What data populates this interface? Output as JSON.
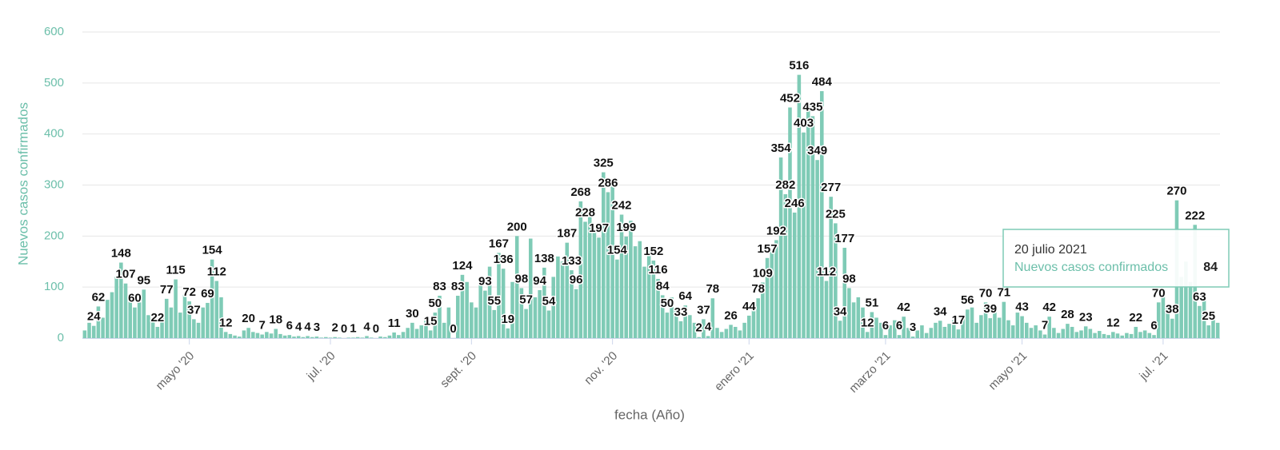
{
  "chart_data": {
    "type": "bar",
    "y_label": "Nuevos casos confirmados",
    "x_label": "fecha (Año)",
    "ylim": [
      0,
      600
    ],
    "yticks": [
      0,
      100,
      200,
      300,
      400,
      500,
      600
    ],
    "grid": true,
    "tooltip_title": "20 julio 2021",
    "categories": [
      null,
      null,
      null,
      null,
      null,
      null,
      null,
      null,
      null,
      null,
      null,
      null,
      null,
      null,
      null,
      null,
      null,
      null,
      null,
      null,
      null,
      null,
      null,
      "mayo '20",
      null,
      null,
      null,
      null,
      null,
      null,
      null,
      null,
      null,
      null,
      null,
      null,
      null,
      null,
      null,
      null,
      null,
      null,
      null,
      null,
      null,
      null,
      null,
      null,
      null,
      null,
      null,
      null,
      null,
      null,
      "jul. '20",
      null,
      null,
      null,
      null,
      null,
      null,
      null,
      null,
      null,
      null,
      null,
      null,
      null,
      null,
      null,
      null,
      null,
      null,
      null,
      null,
      null,
      null,
      null,
      null,
      null,
      null,
      null,
      null,
      null,
      null,
      "sept. '20",
      null,
      null,
      null,
      null,
      null,
      null,
      null,
      null,
      null,
      null,
      null,
      null,
      null,
      null,
      null,
      null,
      null,
      null,
      null,
      null,
      null,
      null,
      null,
      null,
      null,
      null,
      null,
      null,
      null,
      null,
      "nov. '20",
      null,
      null,
      null,
      null,
      null,
      null,
      null,
      null,
      null,
      null,
      null,
      null,
      null,
      null,
      null,
      null,
      null,
      null,
      null,
      null,
      null,
      null,
      null,
      null,
      null,
      null,
      null,
      null,
      null,
      "enero '21",
      null,
      null,
      null,
      null,
      null,
      null,
      null,
      null,
      null,
      null,
      null,
      null,
      null,
      null,
      null,
      null,
      null,
      null,
      null,
      null,
      null,
      null,
      null,
      null,
      null,
      null,
      null,
      null,
      null,
      "marzo '21",
      null,
      null,
      null,
      null,
      null,
      null,
      null,
      null,
      null,
      null,
      null,
      null,
      null,
      null,
      null,
      null,
      null,
      null,
      null,
      null,
      null,
      null,
      null,
      null,
      null,
      null,
      null,
      null,
      null,
      "mayo '21",
      null,
      null,
      null,
      null,
      null,
      null,
      null,
      null,
      null,
      null,
      null,
      null,
      null,
      null,
      null,
      null,
      null,
      null,
      null,
      null,
      null,
      null,
      null,
      null,
      null,
      null,
      null,
      null,
      null,
      null,
      "jul. '21",
      null,
      null,
      null,
      null,
      null,
      null,
      null,
      null,
      null,
      null,
      null,
      null
    ],
    "series": [
      {
        "name": "Nuevos casos confirmados",
        "color": "#7fcbb6",
        "values": [
          15,
          30,
          24,
          62,
          40,
          75,
          90,
          120,
          148,
          107,
          80,
          60,
          70,
          95,
          45,
          35,
          22,
          40,
          77,
          60,
          115,
          50,
          85,
          72,
          37,
          30,
          60,
          69,
          154,
          112,
          80,
          12,
          8,
          5,
          3,
          15,
          20,
          12,
          10,
          7,
          12,
          9,
          18,
          8,
          5,
          6,
          3,
          4,
          2,
          4,
          2,
          3,
          1,
          2,
          1,
          2,
          1,
          0,
          1,
          1,
          2,
          1,
          4,
          1,
          0,
          3,
          2,
          5,
          11,
          6,
          12,
          20,
          30,
          18,
          25,
          40,
          15,
          50,
          83,
          30,
          60,
          0,
          83,
          124,
          110,
          70,
          60,
          105,
          93,
          140,
          55,
          167,
          136,
          19,
          110,
          200,
          98,
          57,
          195,
          80,
          94,
          138,
          54,
          120,
          160,
          150,
          187,
          133,
          96,
          268,
          228,
          240,
          210,
          197,
          325,
          286,
          300,
          154,
          242,
          199,
          230,
          180,
          190,
          140,
          170,
          152,
          116,
          84,
          50,
          80,
          60,
          33,
          64,
          45,
          30,
          2,
          37,
          4,
          78,
          20,
          12,
          18,
          26,
          22,
          15,
          30,
          44,
          60,
          78,
          109,
          157,
          170,
          192,
          354,
          282,
          452,
          246,
          516,
          403,
          460,
          435,
          349,
          484,
          112,
          277,
          225,
          34,
          177,
          98,
          70,
          80,
          60,
          12,
          51,
          40,
          30,
          6,
          25,
          35,
          6,
          42,
          20,
          3,
          15,
          25,
          10,
          20,
          30,
          34,
          22,
          28,
          35,
          17,
          40,
          56,
          60,
          30,
          45,
          70,
          39,
          55,
          40,
          71,
          35,
          25,
          50,
          43,
          30,
          20,
          25,
          15,
          7,
          42,
          20,
          10,
          18,
          28,
          22,
          12,
          15,
          23,
          18,
          10,
          14,
          8,
          6,
          12,
          9,
          5,
          10,
          8,
          22,
          12,
          15,
          10,
          6,
          70,
          90,
          60,
          38,
          270,
          120,
          150,
          110,
          222,
          63,
          84,
          25,
          40,
          30
        ],
        "value_labels": [
          null,
          null,
          "24",
          "62",
          null,
          null,
          null,
          null,
          "148",
          "107",
          null,
          "60",
          null,
          "95",
          null,
          null,
          "22",
          null,
          "77",
          null,
          "115",
          null,
          null,
          "72",
          "37",
          null,
          null,
          "69",
          "154",
          "112",
          null,
          "12",
          null,
          null,
          null,
          null,
          "20",
          null,
          null,
          "7",
          null,
          null,
          "18",
          null,
          null,
          "6",
          null,
          "4",
          null,
          "4",
          null,
          "3",
          null,
          null,
          null,
          "2",
          null,
          "0",
          null,
          "1",
          null,
          null,
          "4",
          null,
          "0",
          null,
          null,
          null,
          "11",
          null,
          null,
          null,
          "30",
          null,
          null,
          null,
          "15",
          "50",
          "83",
          null,
          null,
          "0",
          "83",
          "124",
          null,
          null,
          null,
          null,
          "93",
          null,
          "55",
          "167",
          "136",
          "19",
          null,
          "200",
          "98",
          "57",
          null,
          null,
          "94",
          "138",
          "54",
          null,
          null,
          null,
          "187",
          "133",
          "96",
          "268",
          "228",
          null,
          null,
          "197",
          "325",
          "286",
          null,
          "154",
          "242",
          "199",
          null,
          null,
          null,
          null,
          null,
          "152",
          "116",
          "84",
          "50",
          null,
          null,
          "33",
          "64",
          null,
          null,
          "2",
          "37",
          "4",
          "78",
          null,
          null,
          null,
          "26",
          null,
          null,
          null,
          "44",
          null,
          "78",
          "109",
          "157",
          null,
          "192",
          "354",
          "282",
          "452",
          "246",
          "516",
          "403",
          null,
          "435",
          "349",
          "484",
          "112",
          "277",
          "225",
          "34",
          "177",
          "98",
          null,
          null,
          null,
          "12",
          "51",
          null,
          null,
          "6",
          null,
          null,
          "6",
          "42",
          null,
          "3",
          null,
          null,
          null,
          null,
          null,
          "34",
          null,
          null,
          null,
          "17",
          null,
          "56",
          null,
          null,
          null,
          "70",
          "39",
          null,
          null,
          "71",
          null,
          null,
          null,
          "43",
          null,
          null,
          null,
          null,
          "7",
          "42",
          null,
          null,
          null,
          "28",
          null,
          null,
          null,
          "23",
          null,
          null,
          null,
          null,
          null,
          "12",
          null,
          null,
          null,
          null,
          "22",
          null,
          null,
          null,
          "6",
          "70",
          null,
          null,
          "38",
          "270",
          null,
          null,
          null,
          "222",
          "63",
          null,
          "25",
          null,
          null
        ]
      }
    ]
  }
}
